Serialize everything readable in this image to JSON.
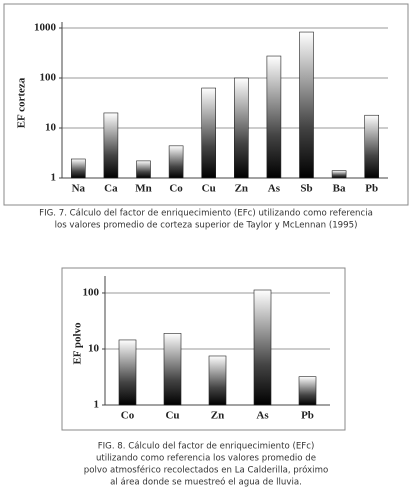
{
  "chart_data": [
    {
      "type": "bar",
      "y_label": "EF corteza",
      "categories": [
        "Na",
        "Ca",
        "Mn",
        "Co",
        "Cu",
        "Zn",
        "As",
        "Sb",
        "Ba",
        "Pb"
      ],
      "values": [
        2.4,
        20,
        2.2,
        4.4,
        63,
        100,
        275,
        830,
        1.4,
        18
      ],
      "ylim": [
        1,
        1000
      ],
      "yticks": [
        1,
        10,
        100,
        1000
      ],
      "log_scale": true,
      "grid": true,
      "caption": [
        "FIG. 7. Cálculo del factor de enriquecimiento (EFc) utilizando como referencia",
        "los valores promedio de corteza superior de Taylor y McLennan (1995)"
      ]
    },
    {
      "type": "bar",
      "y_label": "EF polvo",
      "categories": [
        "Co",
        "Cu",
        "Zn",
        "As",
        "Pb"
      ],
      "values": [
        14.5,
        19,
        7.5,
        113,
        3.2
      ],
      "ylim": [
        1,
        157
      ],
      "yticks": [
        1,
        10,
        100
      ],
      "log_scale": true,
      "grid": true,
      "caption": [
        "FIG. 8. Cálculo del factor de enriquecimiento (EFc)",
        "utilizando como referencia los valores promedio de",
        "polvo atmosférico recolectados en La Calderilla, próximo",
        "al área donde se muestreó el agua de lluvia."
      ]
    }
  ]
}
